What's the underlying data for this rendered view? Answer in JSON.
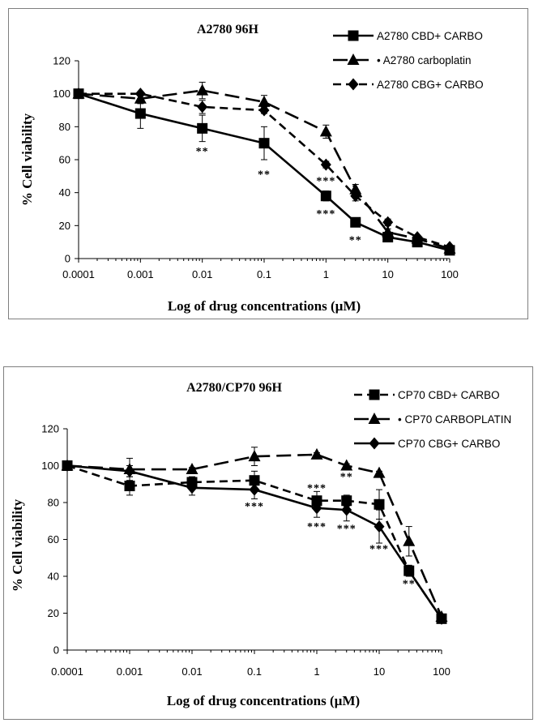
{
  "chart_data": [
    {
      "type": "line",
      "title": "A2780 96H",
      "xlabel": "Log of drug concentrations (µM)",
      "ylabel": "% Cell viability",
      "xscale": "log",
      "xlim": [
        0.0001,
        100
      ],
      "ylim": [
        0,
        120
      ],
      "yticks": [
        0,
        20,
        40,
        60,
        80,
        100,
        120
      ],
      "xticks": [
        "0.0001",
        "0.001",
        "0.01",
        "0.1",
        "1",
        "10",
        "100"
      ],
      "legend_position": "top-right",
      "series": [
        {
          "name": "A2780 CBD+ CARBO",
          "marker": "square",
          "line": "solid",
          "x": [
            0.0001,
            0.001,
            0.01,
            0.1,
            1,
            3,
            10,
            30,
            100
          ],
          "y": [
            100,
            88,
            79,
            70,
            38,
            22,
            13,
            10,
            5
          ],
          "error": [
            2,
            9,
            8,
            10,
            3,
            2,
            2,
            1,
            1
          ]
        },
        {
          "name": "• A2780 carboplatin",
          "marker": "triangle",
          "line": "long-dash",
          "x": [
            0.0001,
            0.001,
            0.01,
            0.1,
            1,
            3,
            10,
            30,
            100
          ],
          "y": [
            100,
            97,
            102,
            95,
            77,
            42,
            16,
            12,
            6
          ],
          "error": [
            1,
            3,
            5,
            4,
            4,
            3,
            2,
            1,
            1
          ]
        },
        {
          "name": "A2780 CBG+ CARBO",
          "marker": "diamond",
          "line": "dash",
          "x": [
            0.0001,
            0.001,
            0.01,
            0.1,
            1,
            3,
            10,
            30,
            100
          ],
          "y": [
            100,
            100,
            92,
            90,
            57,
            38,
            22,
            13,
            7
          ],
          "error": [
            1,
            1,
            4,
            2,
            2,
            3,
            2,
            1,
            1
          ]
        }
      ],
      "annotations": [
        {
          "text": "**",
          "x": 0.01,
          "y": 63
        },
        {
          "text": "**",
          "x": 0.1,
          "y": 49
        },
        {
          "text": "***",
          "x": 1,
          "y": 45
        },
        {
          "text": "***",
          "x": 1,
          "y": 25
        },
        {
          "text": "**",
          "x": 3,
          "y": 9
        }
      ]
    },
    {
      "type": "line",
      "title": "A2780/CP70  96H",
      "xlabel": "Log of drug concentrations (µM)",
      "ylabel": "% Cell viability",
      "xscale": "log",
      "xlim": [
        0.0001,
        100
      ],
      "ylim": [
        0,
        120
      ],
      "yticks": [
        0,
        20,
        40,
        60,
        80,
        100,
        120
      ],
      "xticks": [
        "0.0001",
        "0.001",
        "0.01",
        "0.1",
        "1",
        "10",
        "100"
      ],
      "legend_position": "top-right",
      "series": [
        {
          "name": "CP70 CBD+ CARBO",
          "marker": "square",
          "line": "dash",
          "x": [
            0.0001,
            0.001,
            0.01,
            0.1,
            1,
            3,
            10,
            30,
            100
          ],
          "y": [
            100,
            89,
            91,
            92,
            81,
            81,
            79,
            43,
            17
          ],
          "error": [
            1,
            5,
            3,
            5,
            5,
            3,
            8,
            2,
            1
          ]
        },
        {
          "name": "• CP70 CARBOPLATIN",
          "marker": "triangle",
          "line": "long-dash",
          "x": [
            0.0001,
            0.001,
            0.01,
            0.1,
            1,
            3,
            10,
            30,
            100
          ],
          "y": [
            100,
            98,
            98,
            105,
            106,
            100,
            96,
            59,
            18
          ],
          "error": [
            1,
            6,
            1,
            5,
            1,
            1,
            1,
            8,
            1
          ]
        },
        {
          "name": "CP70 CBG+ CARBO",
          "marker": "diamond",
          "line": "solid",
          "x": [
            0.0001,
            0.001,
            0.01,
            0.1,
            1,
            3,
            10,
            30,
            100
          ],
          "y": [
            100,
            97,
            88,
            87,
            77,
            76,
            67,
            43,
            17
          ],
          "error": [
            1,
            3,
            4,
            5,
            5,
            6,
            9,
            3,
            1
          ]
        }
      ],
      "annotations": [
        {
          "text": "***",
          "x": 0.1,
          "y": 76
        },
        {
          "text": "***",
          "x": 1,
          "y": 86
        },
        {
          "text": "**",
          "x": 3,
          "y": 92
        },
        {
          "text": "***",
          "x": 1,
          "y": 65
        },
        {
          "text": "***",
          "x": 3,
          "y": 64
        },
        {
          "text": "***",
          "x": 10,
          "y": 53
        },
        {
          "text": "**",
          "x": 30,
          "y": 34
        }
      ]
    }
  ]
}
